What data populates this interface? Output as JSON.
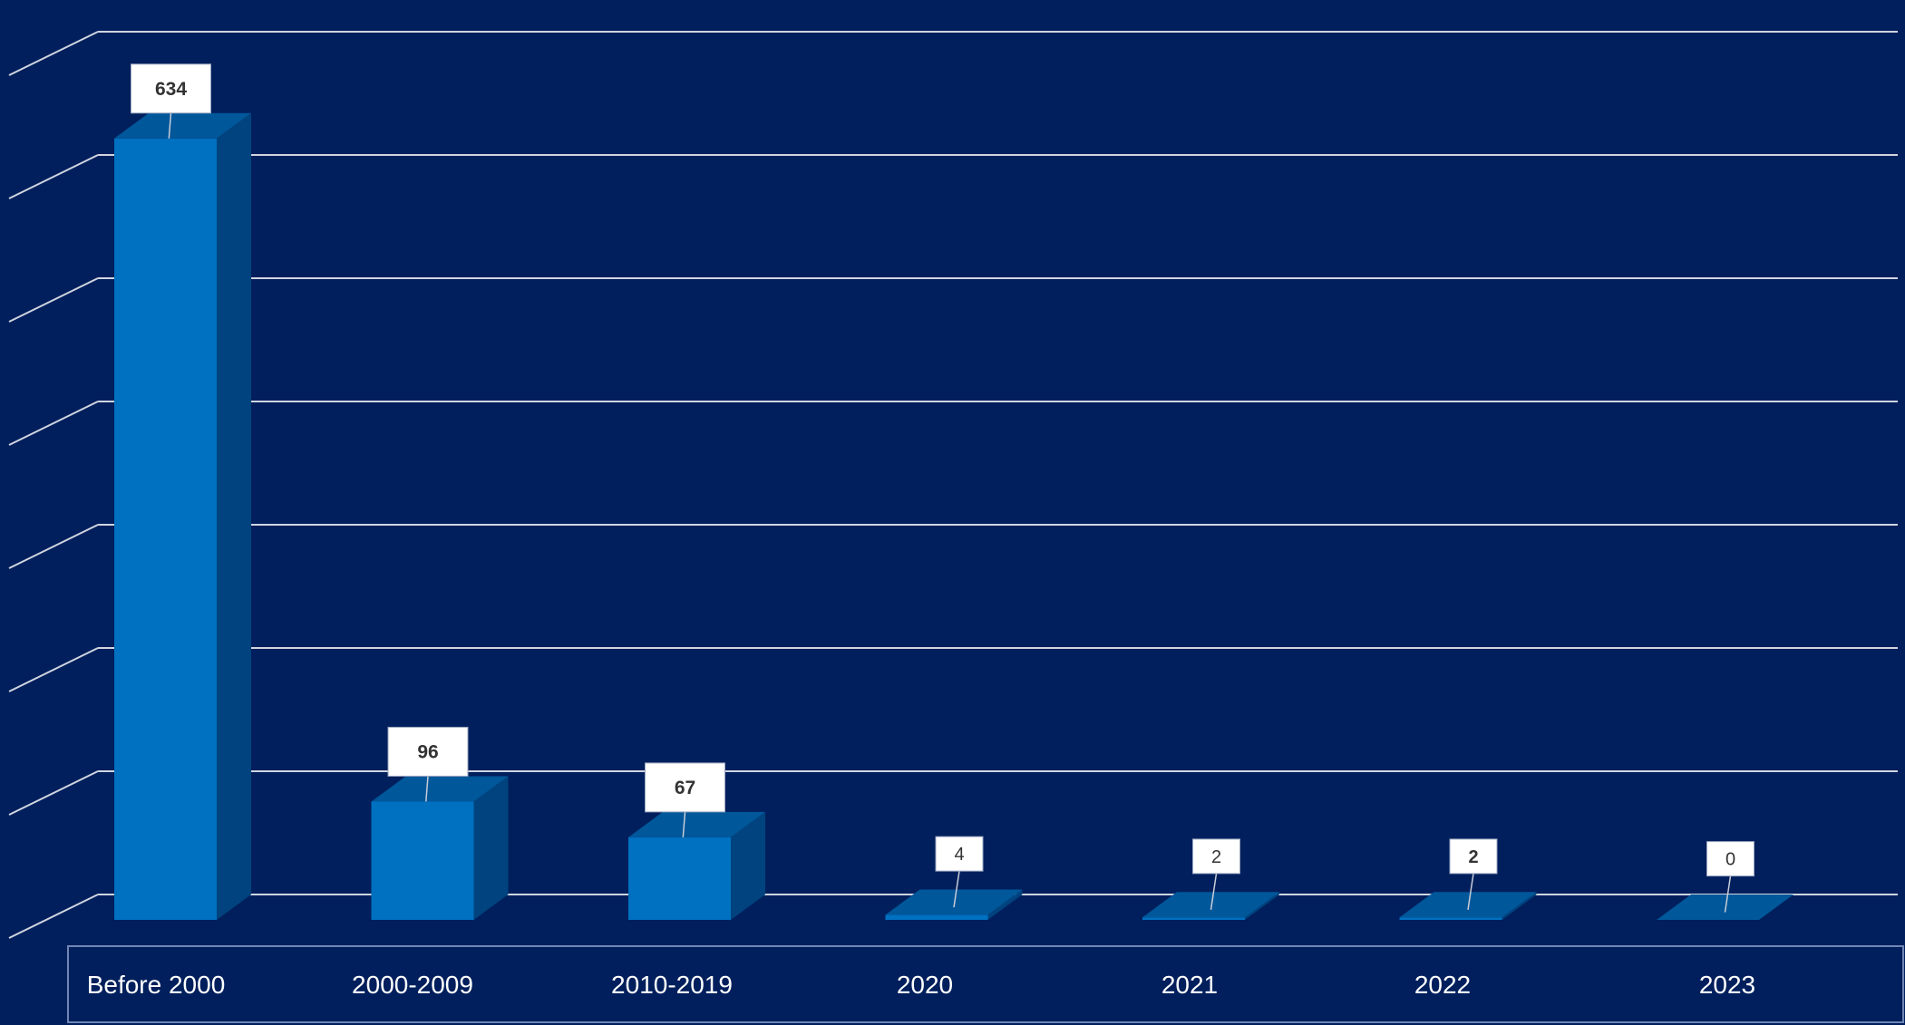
{
  "chart_data": {
    "type": "bar",
    "style": "3d-column",
    "categories": [
      "Before 2000",
      "2000-2009",
      "2010-2019",
      "2020",
      "2021",
      "2022",
      "2023"
    ],
    "values": [
      634,
      96,
      67,
      4,
      2,
      2,
      0
    ],
    "data_labels": [
      "634",
      "96",
      "67",
      "4",
      "2",
      "2",
      "0"
    ],
    "title": "",
    "xlabel": "",
    "ylabel": "",
    "ylim": [
      0,
      700
    ],
    "grid": true,
    "legend": "none",
    "colors": {
      "background": "#001f5c",
      "bar_front": "#0070c0",
      "bar_side": "#00437e",
      "bar_top": "#00579a",
      "gridline": "#d0d5e0",
      "label_box": "#ffffff",
      "label_text": "#333333",
      "axis_text": "#ffffff"
    }
  }
}
